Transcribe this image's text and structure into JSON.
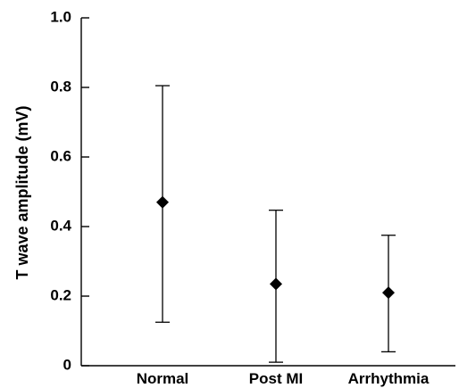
{
  "chart_data": {
    "type": "scatter",
    "title": "",
    "xlabel": "",
    "ylabel": "T wave amplitude (mV)",
    "categories": [
      "Normal",
      "Post MI",
      "Arrhythmia"
    ],
    "series": [
      {
        "values": [
          0.47,
          0.235,
          0.21
        ],
        "error_low": [
          0.125,
          0.01,
          0.04
        ],
        "error_high": [
          0.805,
          0.447,
          0.375
        ]
      }
    ],
    "ylim": [
      0,
      1.0
    ],
    "yticks": [
      "0",
      "0.2",
      "0.4",
      "0.6",
      "0.8",
      "1.0"
    ],
    "grid": false,
    "marker": "diamond",
    "colors": {
      "marker": "#000000",
      "axis": "#000000"
    }
  }
}
